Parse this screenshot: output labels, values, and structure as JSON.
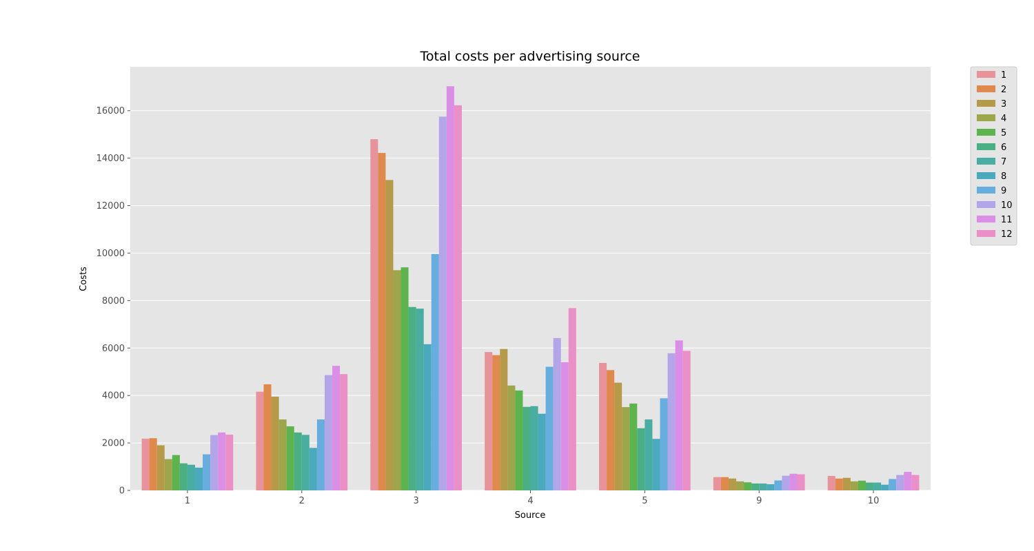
{
  "chart_data": {
    "type": "bar",
    "title": "Total costs per advertising source",
    "xlabel": "Source",
    "ylabel": "Costs",
    "categories": [
      "1",
      "2",
      "3",
      "4",
      "5",
      "9",
      "10"
    ],
    "ylim": [
      0,
      17850
    ],
    "yticks": [
      "0",
      "2000",
      "4000",
      "6000",
      "8000",
      "10000",
      "12000",
      "14000",
      "16000"
    ],
    "grid": true,
    "legend_position": "outside-top-right",
    "background_color": "#e5e5e5",
    "series": [
      {
        "name": "1",
        "color": "#e8939c",
        "values": [
          2180,
          4160,
          14800,
          5830,
          5370,
          560,
          610
        ]
      },
      {
        "name": "2",
        "color": "#e0894c",
        "values": [
          2200,
          4470,
          14220,
          5700,
          5070,
          560,
          500
        ]
      },
      {
        "name": "3",
        "color": "#b59a4a",
        "values": [
          1900,
          3950,
          13080,
          5960,
          4540,
          500,
          530
        ]
      },
      {
        "name": "4",
        "color": "#9da64a",
        "values": [
          1320,
          2990,
          9280,
          4420,
          3510,
          380,
          380
        ]
      },
      {
        "name": "5",
        "color": "#5db34e",
        "values": [
          1490,
          2700,
          9400,
          4210,
          3660,
          340,
          410
        ]
      },
      {
        "name": "6",
        "color": "#4aaf85",
        "values": [
          1140,
          2440,
          7730,
          3520,
          2620,
          290,
          330
        ]
      },
      {
        "name": "7",
        "color": "#4aada1",
        "values": [
          1080,
          2340,
          7660,
          3550,
          2990,
          290,
          330
        ]
      },
      {
        "name": "8",
        "color": "#4aa9bd",
        "values": [
          960,
          1790,
          6160,
          3230,
          2170,
          260,
          240
        ]
      },
      {
        "name": "9",
        "color": "#67adde",
        "values": [
          1520,
          2990,
          9960,
          5210,
          3880,
          420,
          480
        ]
      },
      {
        "name": "10",
        "color": "#b3a6e8",
        "values": [
          2330,
          4860,
          15750,
          6420,
          5780,
          620,
          650
        ]
      },
      {
        "name": "11",
        "color": "#db8ee6",
        "values": [
          2440,
          5250,
          17030,
          5400,
          6320,
          700,
          780
        ]
      },
      {
        "name": "12",
        "color": "#ea90c6",
        "values": [
          2350,
          4900,
          16230,
          7680,
          5880,
          680,
          650
        ]
      }
    ]
  }
}
